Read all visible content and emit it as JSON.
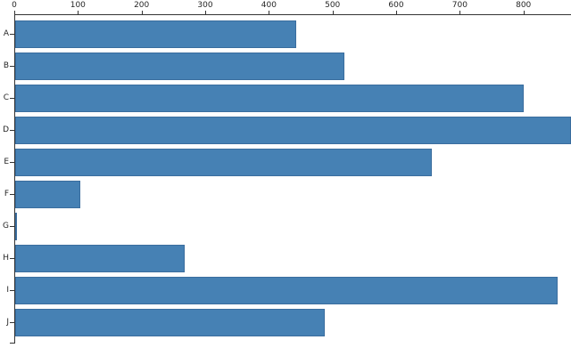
{
  "chart_data": {
    "type": "bar",
    "orientation": "horizontal",
    "title": "",
    "xlabel": "",
    "ylabel": "",
    "categories": [
      "A",
      "B",
      "C",
      "D",
      "E",
      "F",
      "G",
      "H",
      "I",
      "J"
    ],
    "values": [
      443,
      519,
      800,
      875,
      656,
      104,
      4,
      268,
      853,
      488
    ],
    "x_ticks": [
      0,
      100,
      200,
      300,
      400,
      500,
      600,
      700,
      800
    ],
    "xlim": [
      0,
      875
    ],
    "axis_position": "top",
    "grid": false,
    "legend": "none",
    "bar_color": "#4681b4",
    "bar_edge_color": "#3a6d9e",
    "axis_color": "#333333",
    "tick_label_color": "#262626",
    "layout_note": "bar D clipped at right image edge; bottom axis end tick partially visible, unlabeled"
  }
}
